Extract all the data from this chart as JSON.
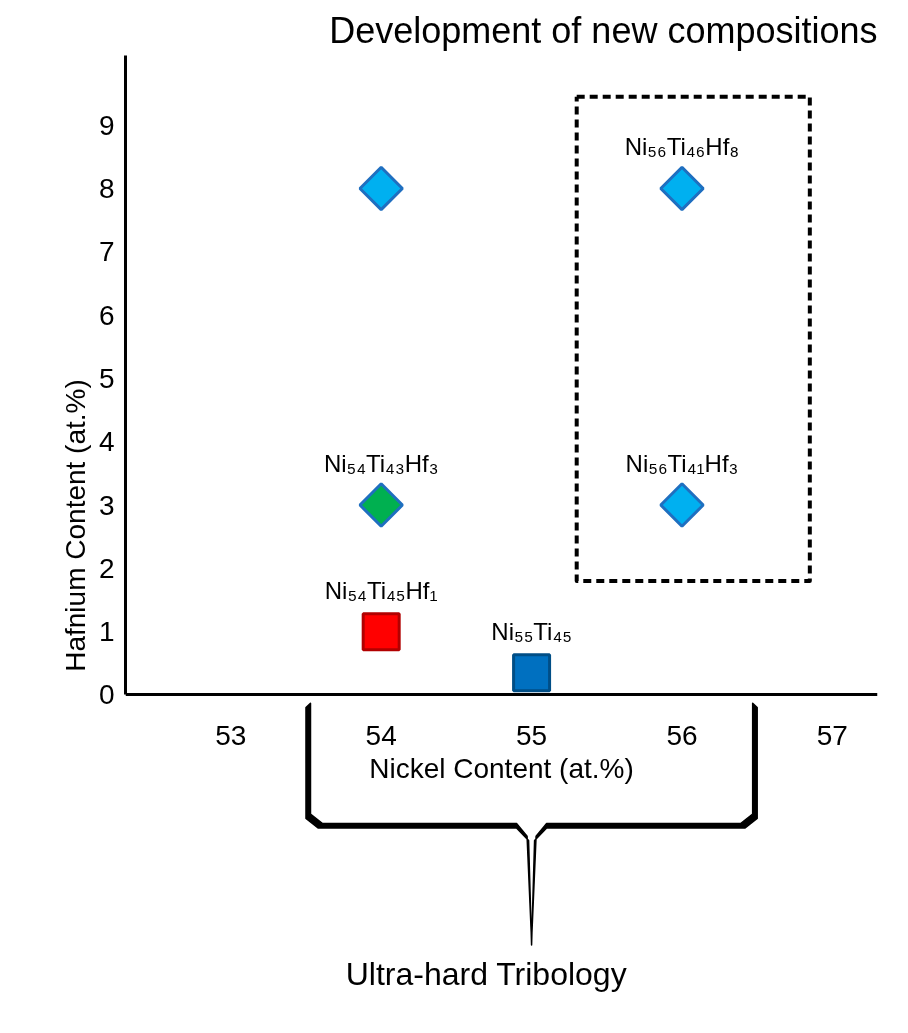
{
  "chart_data": {
    "type": "scatter",
    "title": "Development of new compositions",
    "xlabel": "Nickel Content (at.%)",
    "ylabel": "Hafnium Content (at.%)",
    "xlim": [
      52.3,
      57.3
    ],
    "ylim": [
      0,
      10.1
    ],
    "xticks": [
      53,
      54,
      55,
      56,
      57
    ],
    "yticks": [
      0,
      1,
      2,
      3,
      4,
      5,
      6,
      7,
      8,
      9
    ],
    "grid": false,
    "annotations": [
      "Ultra-hard Tribology"
    ],
    "series": [
      {
        "color": "#00b0f0",
        "marker": "diamond",
        "x": [
          54
        ],
        "values": [
          8
        ]
      },
      {
        "name": "Ni₅₆Ti₄₆Hf₈",
        "color": "#00b0f0",
        "marker": "diamond",
        "x": [
          56
        ],
        "values": [
          8
        ]
      },
      {
        "name": "Ni₅₆Ti₄₁Hf₃",
        "color": "#00b0f0",
        "marker": "diamond",
        "x": [
          56
        ],
        "values": [
          3
        ]
      },
      {
        "name": "Ni₅₄Ti₄₃Hf₃",
        "color": "#00b050",
        "marker": "diamond",
        "x": [
          54
        ],
        "values": [
          3
        ]
      },
      {
        "name": "Ni₅₄Ti₄₅Hf₁",
        "color": "#ff0000",
        "marker": "square",
        "x": [
          54
        ],
        "values": [
          1
        ]
      },
      {
        "name": "Ni₅₅Ti₄₅",
        "color": "#0070c0",
        "marker": "square",
        "x": [
          55
        ],
        "values": [
          0.35
        ]
      }
    ]
  }
}
